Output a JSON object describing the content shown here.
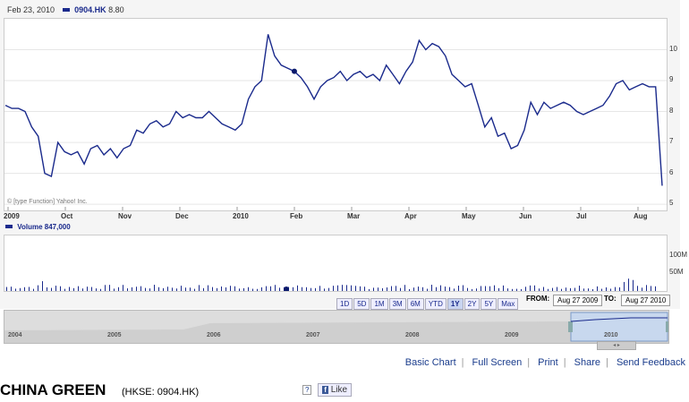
{
  "header": {
    "date": "Feb 23, 2010",
    "symbol": "0904.HK",
    "price": "8.80"
  },
  "volume": {
    "label": "Volume",
    "value": "847,000",
    "yticks": [
      "100M",
      "50M"
    ]
  },
  "copyright": "© [type Function] Yahoo! Inc.",
  "range_buttons": [
    "1D",
    "5D",
    "1M",
    "3M",
    "6M",
    "YTD",
    "1Y",
    "2Y",
    "5Y",
    "Max"
  ],
  "active_range": "1Y",
  "date_from_label": "FROM:",
  "date_from": "Aug 27 2009",
  "date_to_label": "TO:",
  "date_to": "Aug 27 2010",
  "nav_years": [
    "2004",
    "2005",
    "2006",
    "2007",
    "2008",
    "2009",
    "2010"
  ],
  "links": [
    "Basic Chart",
    "Full Screen",
    "Print",
    "Share",
    "Send Feedback"
  ],
  "company": {
    "name": "CHINA GREEN",
    "exchange": "(HKSE: 0904.HK)"
  },
  "like_label": "Like",
  "help_label": "?",
  "colors": {
    "line": "#1a2a8c",
    "nav_fill": "#c8d8ee"
  },
  "chart_data": {
    "type": "line",
    "x_tick_labels": [
      "2009",
      "Oct",
      "Nov",
      "Dec",
      "2010",
      "Feb",
      "Mar",
      "Apr",
      "May",
      "Jun",
      "Jul",
      "Aug"
    ],
    "y_tick_labels": [
      "10",
      "9",
      "8",
      "7",
      "6",
      "5"
    ],
    "ylim": [
      4.8,
      11
    ],
    "series": [
      {
        "values": [
          8.2,
          8.1,
          8.1,
          8.0,
          7.5,
          7.2,
          6.0,
          5.9,
          7.0,
          6.7,
          6.6,
          6.7,
          6.3,
          6.8,
          6.9,
          6.6,
          6.8,
          6.5,
          6.8,
          6.9,
          7.4,
          7.3,
          7.6,
          7.7,
          7.5,
          7.6,
          8.0,
          7.8,
          7.9,
          7.8,
          7.8,
          8.0,
          7.8,
          7.6,
          7.5,
          7.4,
          7.6,
          8.4,
          8.8,
          9.0,
          10.5,
          9.8,
          9.5,
          9.4,
          9.3,
          9.1,
          8.8,
          8.4,
          8.8,
          9.0,
          9.1,
          9.3,
          9.0,
          9.2,
          9.3,
          9.1,
          9.2,
          9.0,
          9.5,
          9.2,
          8.9,
          9.3,
          9.6,
          10.3,
          10.0,
          10.2,
          10.1,
          9.8,
          9.2,
          9.0,
          8.8,
          8.9,
          8.2,
          7.5,
          7.8,
          7.2,
          7.3,
          6.8,
          6.9,
          7.4,
          8.3,
          7.9,
          8.3,
          8.1,
          8.2,
          8.3,
          8.2,
          8.0,
          7.9,
          8.0,
          8.1,
          8.2,
          8.5,
          8.9,
          9.0,
          8.7,
          8.8,
          8.9,
          8.8,
          8.8,
          5.6
        ]
      }
    ]
  }
}
